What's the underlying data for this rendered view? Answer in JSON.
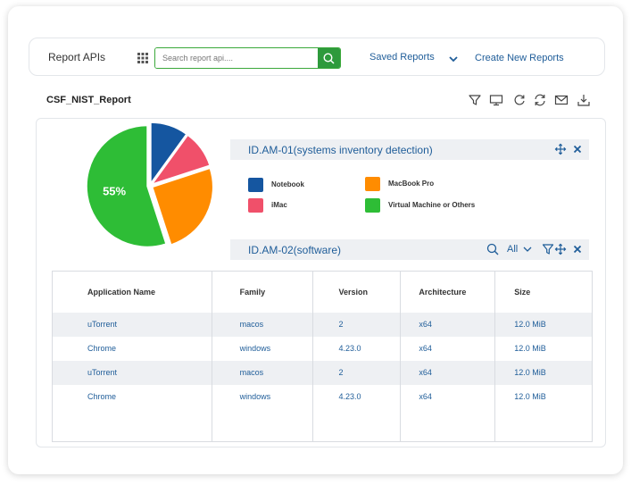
{
  "header": {
    "title": "Report APIs",
    "search_placeholder": "Search report api....",
    "saved_reports": "Saved Reports",
    "create_new": "Create New Reports"
  },
  "report": {
    "title": "CSF_NIST_Report",
    "toolbar_icons": [
      "filter-icon",
      "monitor-icon",
      "reload-icon",
      "sync-icon",
      "mail-icon",
      "download-icon"
    ]
  },
  "chart_data": {
    "type": "pie",
    "labels": [
      "Notebook",
      "iMac",
      "MacBook Pro",
      "Virtual Machine or Others"
    ],
    "values": [
      10,
      10,
      25,
      55
    ],
    "colors": [
      "#1556a0",
      "#f0506a",
      "#ff8c00",
      "#2ebd36"
    ],
    "data_labels": [
      "",
      "",
      "",
      "55%"
    ]
  },
  "sections": [
    {
      "label": "ID.AM-01(systems inventory detection)",
      "icons": [
        "move-icon",
        "close-icon"
      ]
    },
    {
      "label": "ID.AM-02(software)",
      "filter_value": "All",
      "icons": [
        "search-icon",
        "chevron-down-icon",
        "filter-icon",
        "move-icon",
        "close-icon"
      ]
    }
  ],
  "legend": [
    {
      "label": "Notebook",
      "color": "#1556a0"
    },
    {
      "label": "MacBook Pro",
      "color": "#ff8c00"
    },
    {
      "label": "iMac",
      "color": "#f0506a"
    },
    {
      "label": "Virtual Machine or Others",
      "color": "#2ebd36"
    }
  ],
  "table": {
    "columns": [
      "Application Name",
      "Family",
      "Version",
      "Architecture",
      "Size"
    ],
    "rows": [
      [
        "uTorrent",
        "macos",
        "2",
        "x64",
        "12.0 MiB"
      ],
      [
        "Chrome",
        "windows",
        "4.23.0",
        "x64",
        "12.0 MiB"
      ],
      [
        "uTorrent",
        "macos",
        "2",
        "x64",
        "12.0 MiB"
      ],
      [
        "Chrome",
        "windows",
        "4.23.0",
        "x64",
        "12.0 MiB"
      ]
    ]
  }
}
